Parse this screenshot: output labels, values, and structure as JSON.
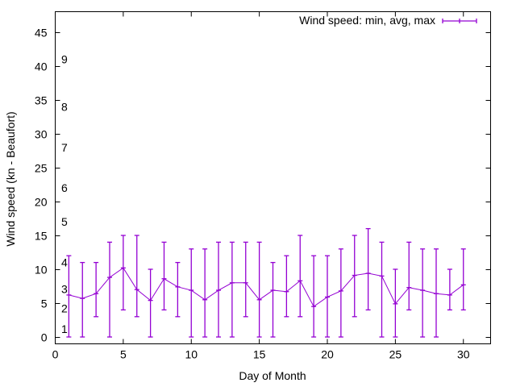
{
  "chart_data": {
    "type": "line",
    "title": "",
    "xlabel": "Day of Month",
    "ylabel": "Wind speed (kn - Beaufort)",
    "xlim": [
      0,
      32
    ],
    "ylim": [
      -1,
      48
    ],
    "xticks": [
      0,
      5,
      10,
      15,
      20,
      25,
      30
    ],
    "yticks": [
      0,
      5,
      10,
      15,
      20,
      25,
      30,
      35,
      40,
      45
    ],
    "legend": {
      "label": "Wind speed: min, avg, max",
      "placement": "top-right"
    },
    "series_color": "#9400d3",
    "series": [
      {
        "name": "Wind speed: min, avg, max",
        "x": [
          1,
          2,
          3,
          4,
          5,
          6,
          7,
          8,
          9,
          10,
          11,
          12,
          13,
          14,
          15,
          16,
          17,
          18,
          19,
          20,
          21,
          22,
          23,
          24,
          25,
          26,
          27,
          28,
          29,
          30
        ],
        "min": [
          0,
          0,
          3,
          0,
          4,
          3,
          0,
          4,
          3,
          0,
          0,
          0,
          0,
          3,
          0,
          0,
          3,
          3,
          0,
          0,
          0,
          3,
          4,
          0,
          0,
          4,
          0,
          0,
          4,
          4
        ],
        "avg": [
          6.2,
          5.7,
          6.4,
          8.8,
          10.2,
          7.0,
          5.4,
          8.6,
          7.4,
          6.9,
          5.5,
          6.9,
          8.0,
          8.0,
          5.5,
          6.9,
          6.7,
          8.3,
          4.5,
          5.9,
          6.8,
          9.1,
          9.4,
          9.0,
          4.9,
          7.3,
          6.9,
          6.4,
          6.2,
          7.7
        ],
        "max": [
          12,
          11,
          11,
          14,
          15,
          15,
          10,
          14,
          11,
          13,
          13,
          14,
          14,
          14,
          14,
          11,
          12,
          15,
          12,
          12,
          13,
          15,
          16,
          14,
          10,
          14,
          13,
          13,
          10,
          13
        ]
      }
    ],
    "annotations": [
      {
        "text": "1",
        "y": 1.2
      },
      {
        "text": "2",
        "y": 4.2
      },
      {
        "text": "3",
        "y": 7.1
      },
      {
        "text": "4",
        "y": 11
      },
      {
        "text": "5",
        "y": 17
      },
      {
        "text": "6",
        "y": 22
      },
      {
        "text": "7",
        "y": 28
      },
      {
        "text": "8",
        "y": 34
      },
      {
        "text": "9",
        "y": 41
      }
    ]
  }
}
